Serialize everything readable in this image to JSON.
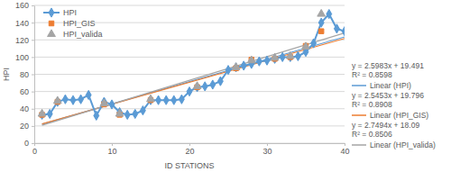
{
  "chart_data": {
    "type": "line",
    "x_label": "ID STATIONS",
    "y_label": "HPI",
    "x": [
      1,
      2,
      3,
      4,
      5,
      6,
      7,
      8,
      9,
      10,
      11,
      12,
      13,
      14,
      15,
      16,
      17,
      18,
      19,
      20,
      21,
      22,
      23,
      24,
      25,
      26,
      27,
      28,
      29,
      30,
      31,
      32,
      33,
      34,
      35,
      36,
      37,
      38,
      39,
      40
    ],
    "series": [
      {
        "name": "HPI",
        "type": "line",
        "color": "#5b9bd5",
        "marker": "diamond",
        "line_style": "solid",
        "values": [
          33,
          34,
          48,
          51,
          50,
          51,
          56,
          32,
          48,
          45,
          36,
          33,
          34,
          38,
          50,
          50,
          50,
          50,
          51,
          60,
          65,
          66,
          68,
          72,
          85,
          88,
          90,
          92,
          95,
          96,
          98,
          100,
          100,
          101,
          106,
          116,
          140,
          150,
          133,
          130
        ]
      },
      {
        "name": "HPI_GIS",
        "type": "scatter",
        "color": "#ed7d31",
        "marker": "square",
        "values": [
          33,
          null,
          48,
          null,
          null,
          null,
          null,
          null,
          45,
          null,
          33,
          null,
          null,
          null,
          50,
          null,
          null,
          null,
          null,
          null,
          65,
          null,
          null,
          null,
          null,
          87,
          null,
          97,
          null,
          null,
          98,
          null,
          100,
          null,
          113,
          null,
          130,
          null,
          null,
          null
        ]
      },
      {
        "name": "HPI_valida",
        "type": "scatter",
        "color": "#a5a5a5",
        "marker": "triangle",
        "values": [
          34,
          null,
          49,
          null,
          null,
          null,
          null,
          null,
          46,
          null,
          34,
          null,
          null,
          null,
          51,
          null,
          null,
          null,
          null,
          null,
          66,
          null,
          null,
          null,
          null,
          88,
          null,
          96,
          null,
          null,
          99,
          null,
          101,
          null,
          112,
          null,
          150,
          null,
          null,
          null
        ]
      },
      {
        "name": "Linear (HPI)",
        "type": "trendline",
        "color": "#5b9bd5",
        "line_style": "solid",
        "x": [
          1,
          40
        ],
        "values": [
          22.1,
          123.4
        ],
        "equation": "y = 2.5983x + 19.491",
        "r_squared": "R² = 0.8598"
      },
      {
        "name": "Linear (HPI_GIS)",
        "type": "trendline",
        "color": "#ed7d31",
        "line_style": "solid",
        "x": [
          1,
          40
        ],
        "values": [
          22.3,
          121.6
        ],
        "equation": "y = 2.5453x + 19.796",
        "r_squared": "R² = 0.8908"
      },
      {
        "name": "Linear (HPI_valida)",
        "type": "trendline",
        "color": "#a5a5a5",
        "line_style": "solid",
        "x": [
          1,
          40
        ],
        "values": [
          20.8,
          128.1
        ],
        "equation": "y = 2.7494x + 18.09",
        "r_squared": "R² = 0.8506"
      }
    ],
    "xlim": [
      0,
      40
    ],
    "xticks": [
      0,
      10,
      20,
      30,
      40
    ],
    "ylim": [
      0,
      160
    ],
    "yticks": [
      0,
      20,
      40,
      60,
      80,
      100,
      120,
      140,
      160
    ],
    "grid": true,
    "legend": "upper left"
  }
}
